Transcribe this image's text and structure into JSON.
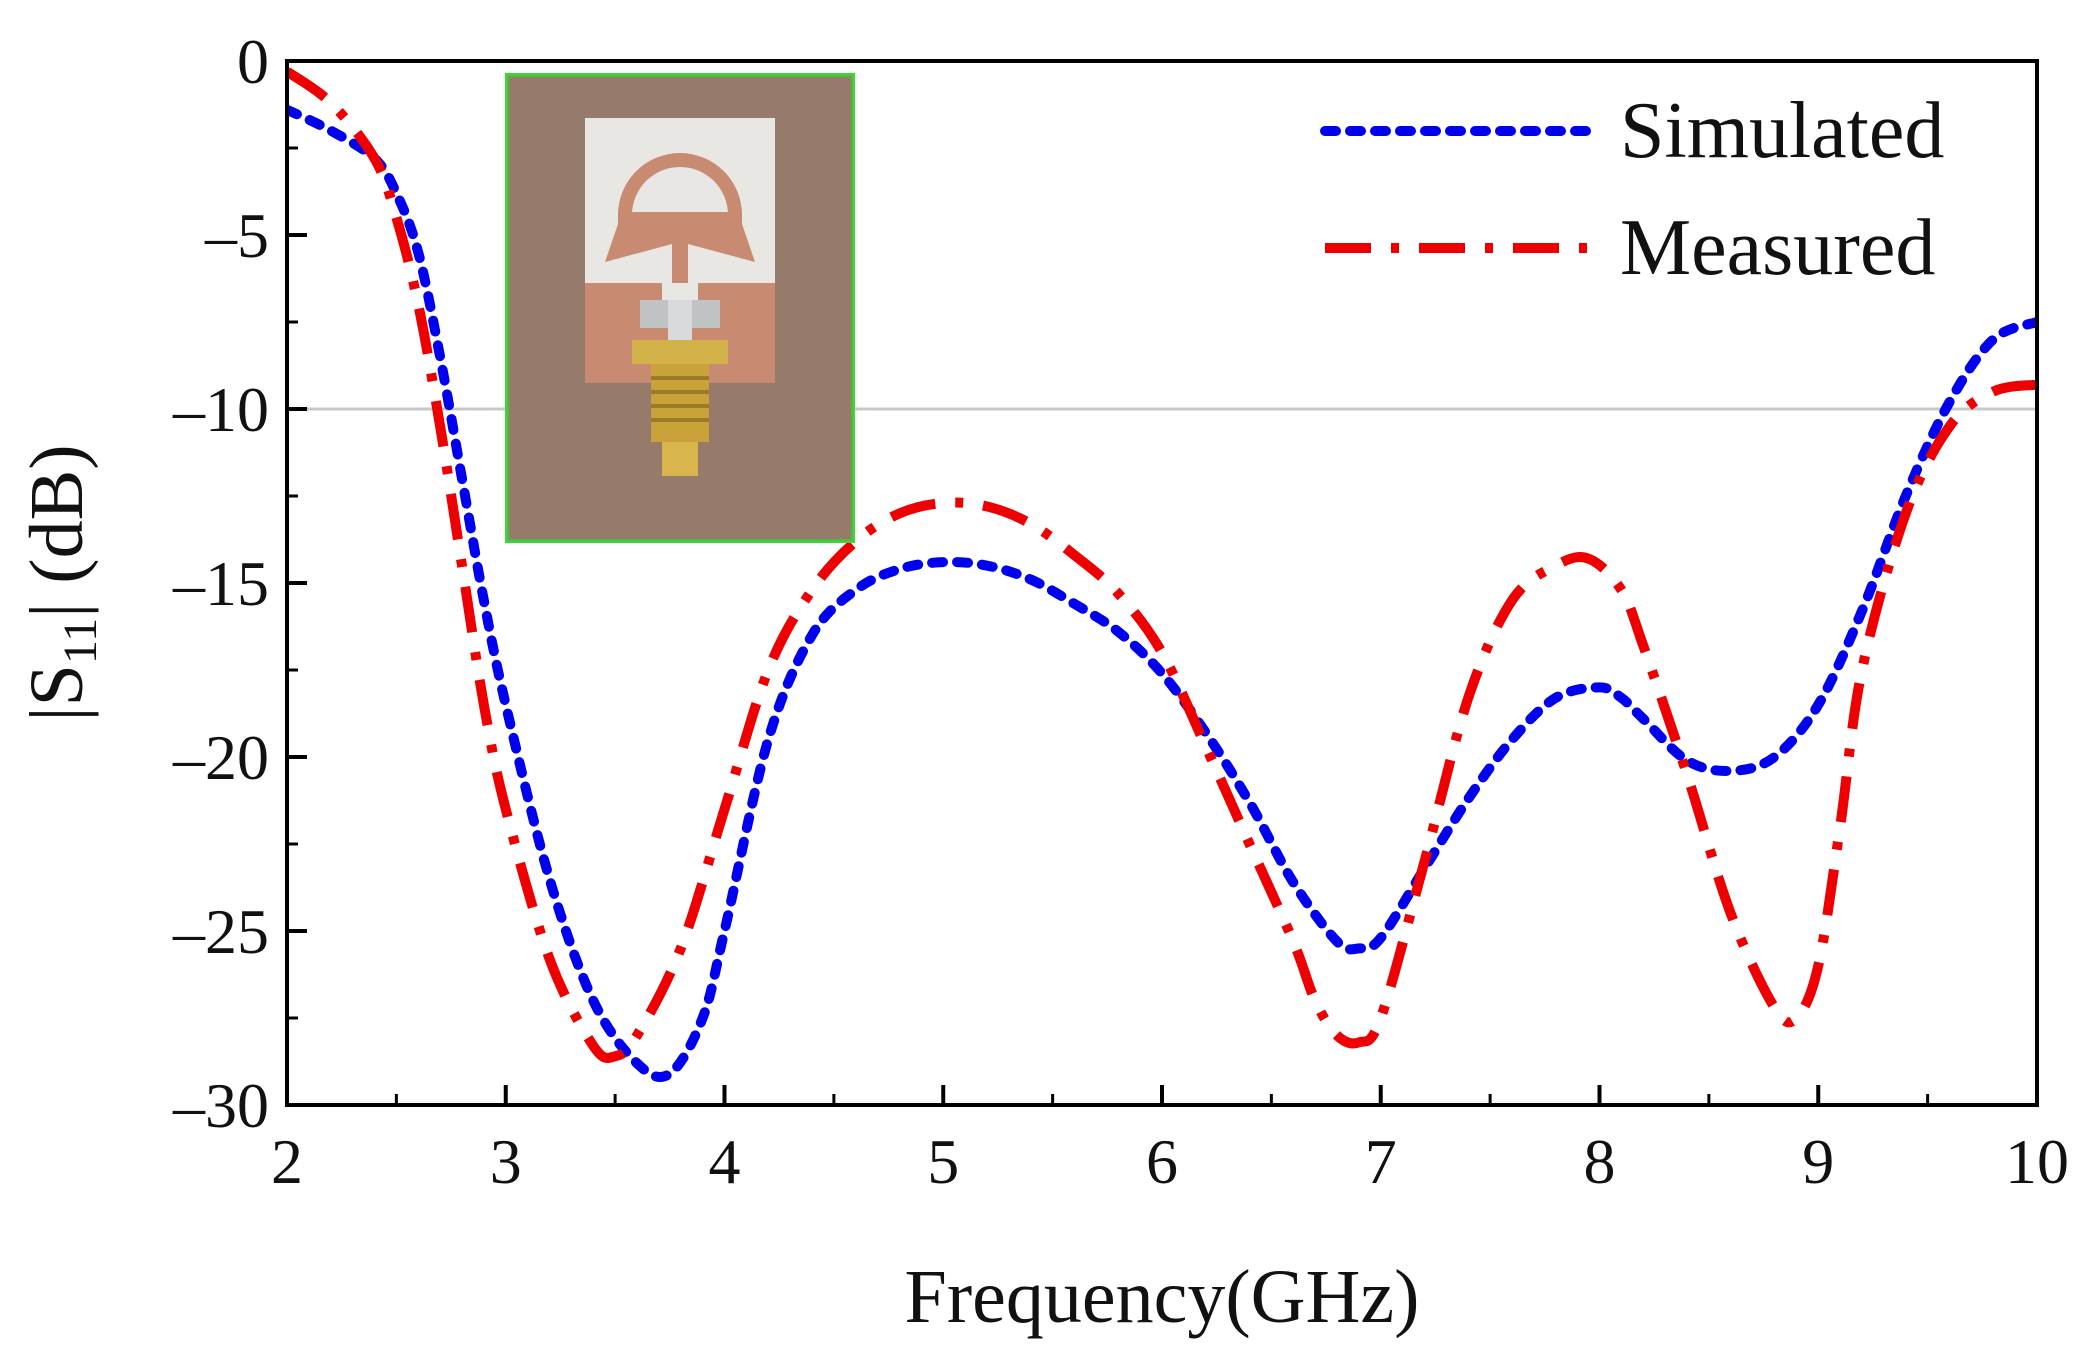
{
  "chart_data": {
    "type": "line",
    "title": "",
    "xlabel": "Frequency(GHz)",
    "ylabel_main": "|S",
    "ylabel_sub": "11",
    "ylabel_tail": "| (dB)",
    "xlim": [
      2,
      10
    ],
    "ylim": [
      -30,
      0
    ],
    "xticks": [
      "2",
      "3",
      "4",
      "5",
      "6",
      "7",
      "8",
      "9",
      "10"
    ],
    "yticks": [
      "0",
      "–5",
      "–10",
      "–15",
      "–20",
      "–25",
      "–30"
    ],
    "reference_line": -10,
    "legend_position": "top-right",
    "series": [
      {
        "name": "Simulated",
        "color": "#0000ee",
        "style": "dotted",
        "x": [
          2.0,
          2.2,
          2.4,
          2.5,
          2.6,
          2.7,
          2.8,
          2.9,
          3.0,
          3.2,
          3.4,
          3.6,
          3.75,
          3.9,
          4.0,
          4.2,
          4.4,
          4.6,
          4.8,
          5.0,
          5.2,
          5.4,
          5.6,
          5.8,
          6.0,
          6.2,
          6.4,
          6.6,
          6.8,
          6.9,
          7.0,
          7.2,
          7.4,
          7.6,
          7.8,
          8.0,
          8.1,
          8.2,
          8.4,
          8.6,
          8.8,
          9.0,
          9.2,
          9.4,
          9.6,
          9.8,
          10.0
        ],
        "y": [
          -1.4,
          -2.0,
          -2.8,
          -3.8,
          -5.5,
          -8.5,
          -12.0,
          -15.5,
          -18.5,
          -23.5,
          -27.0,
          -28.8,
          -29.1,
          -27.5,
          -25.0,
          -19.5,
          -16.5,
          -15.2,
          -14.6,
          -14.4,
          -14.5,
          -14.9,
          -15.6,
          -16.4,
          -17.6,
          -19.3,
          -21.3,
          -23.6,
          -25.3,
          -25.5,
          -25.2,
          -23.2,
          -21.2,
          -19.5,
          -18.3,
          -18.0,
          -18.3,
          -18.9,
          -20.1,
          -20.4,
          -20.0,
          -18.5,
          -15.8,
          -12.5,
          -9.8,
          -8.0,
          -7.5
        ]
      },
      {
        "name": "Measured",
        "color": "#ee0000",
        "style": "dashdot",
        "x": [
          2.0,
          2.2,
          2.4,
          2.5,
          2.6,
          2.7,
          2.8,
          2.9,
          3.0,
          3.2,
          3.4,
          3.5,
          3.6,
          3.8,
          4.0,
          4.2,
          4.4,
          4.6,
          4.8,
          5.0,
          5.2,
          5.4,
          5.6,
          5.8,
          6.0,
          6.2,
          6.4,
          6.6,
          6.7,
          6.8,
          6.9,
          7.0,
          7.2,
          7.4,
          7.6,
          7.8,
          7.95,
          8.1,
          8.2,
          8.4,
          8.6,
          8.8,
          8.9,
          9.0,
          9.1,
          9.2,
          9.4,
          9.6,
          9.8,
          10.0
        ],
        "y": [
          -0.3,
          -1.2,
          -2.8,
          -4.5,
          -7.0,
          -10.5,
          -14.5,
          -18.5,
          -21.5,
          -25.8,
          -28.3,
          -28.6,
          -28.0,
          -25.5,
          -21.5,
          -17.5,
          -15.2,
          -13.8,
          -13.0,
          -12.7,
          -12.8,
          -13.3,
          -14.2,
          -15.3,
          -17.0,
          -19.7,
          -22.5,
          -25.3,
          -27.0,
          -28.0,
          -28.2,
          -27.5,
          -23.0,
          -18.3,
          -15.5,
          -14.5,
          -14.3,
          -15.2,
          -16.8,
          -20.5,
          -24.5,
          -27.2,
          -27.5,
          -26.0,
          -22.0,
          -17.5,
          -13.0,
          -10.5,
          -9.5,
          -9.3
        ]
      }
    ]
  },
  "inset": {
    "description_icon": "antenna-photo-icon",
    "border_color": "#33dd33"
  }
}
